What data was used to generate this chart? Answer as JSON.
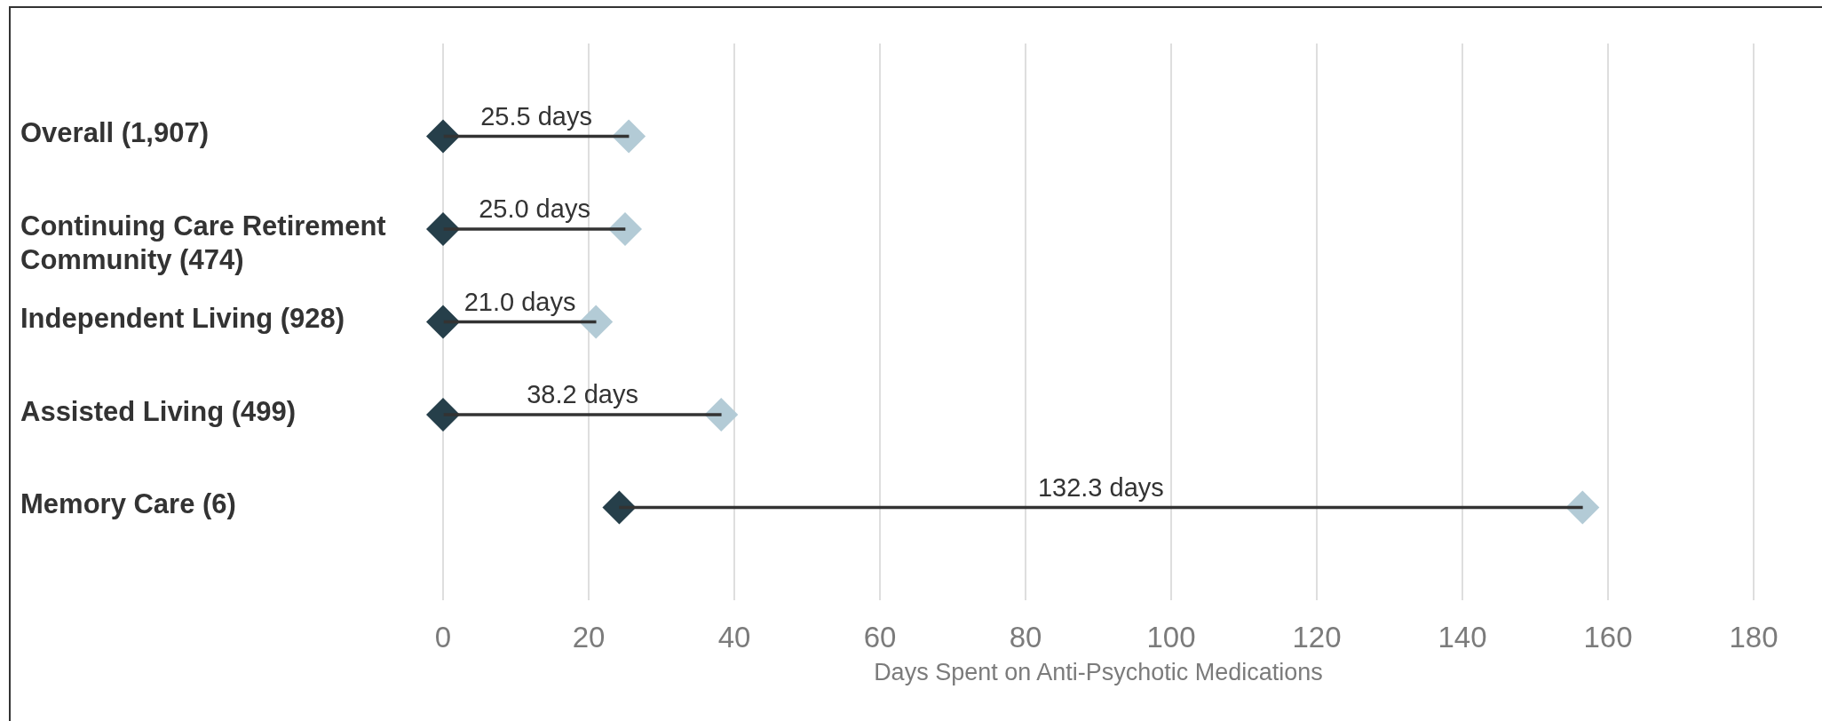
{
  "chart_data": {
    "type": "bar",
    "orientation": "horizontal",
    "categories": [
      "Overall (1,907)",
      "Continuing Care Retirement Community (474)",
      "Independent Living (928)",
      "Assisted Living (499)",
      "Memory Care (6)"
    ],
    "xlabel": "Days Spent on Anti-Psychotic Medications",
    "xlim": [
      0,
      180
    ],
    "xticks": [
      0,
      20,
      40,
      60,
      80,
      100,
      120,
      140,
      160,
      180
    ],
    "grid": "x",
    "marker": "diamond",
    "series": [
      {
        "color": "#333333",
        "base": [
          0,
          0,
          0,
          0,
          24.2
        ],
        "values": [
          25.5,
          25.0,
          21.0,
          38.2,
          132.3
        ],
        "value_labels": [
          "25.5 days",
          "25.0 days",
          "21.0 days",
          "38.2 days",
          "132.3 days"
        ]
      },
      {
        "type": "scatter",
        "color": "#263f4a",
        "values": [
          0,
          0,
          0,
          0,
          24.2
        ]
      },
      {
        "type": "scatter",
        "color": "#b3cbd6",
        "values": [
          25.5,
          25.0,
          21.0,
          38.2,
          156.5
        ]
      }
    ]
  }
}
